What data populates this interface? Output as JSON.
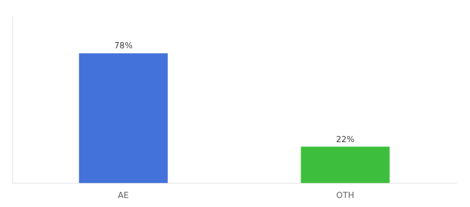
{
  "chart_data": {
    "type": "bar",
    "categories": [
      "AE",
      "OTH"
    ],
    "values": [
      78,
      22
    ],
    "value_labels": [
      "78%",
      "22%"
    ],
    "colors": [
      "#4472db",
      "#3dbf3d"
    ],
    "ylim": [
      0,
      100
    ],
    "data_labels": true,
    "tick_labels": "x",
    "grid": false
  }
}
